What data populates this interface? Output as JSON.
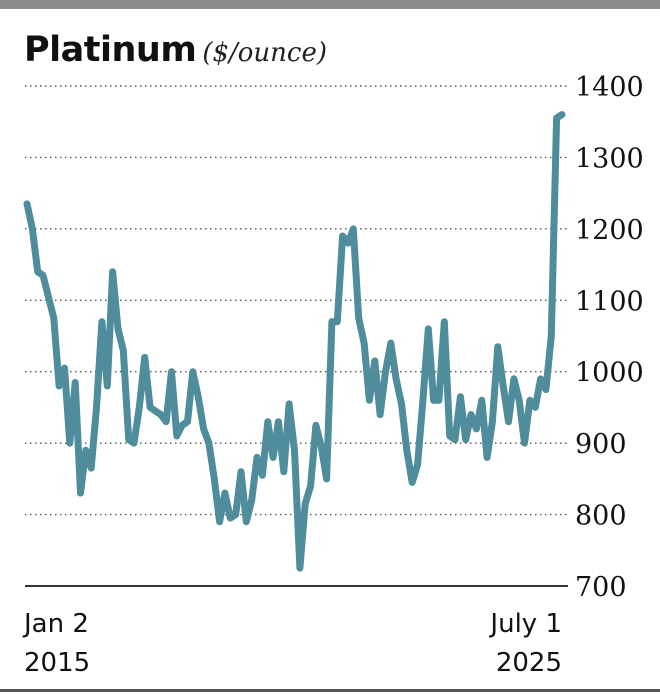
{
  "chart_data": {
    "type": "line",
    "title": "Platinum",
    "unit_label": "($/ounce)",
    "y_ticks": [
      1400,
      1300,
      1200,
      1100,
      1000,
      900,
      800,
      700
    ],
    "ylim": [
      700,
      1400
    ],
    "x_labels": [
      {
        "line1": "Jan 2",
        "line2": "2015"
      },
      {
        "line1": "July 1",
        "line2": "2025"
      }
    ],
    "grid": "horizontal dotted",
    "line_color": "#4f8d9c",
    "series": [
      {
        "values": [
          1235,
          1200,
          1140,
          1135,
          1105,
          1075,
          980,
          1005,
          900,
          985,
          830,
          890,
          865,
          950,
          1070,
          980,
          1140,
          1060,
          1030,
          905,
          900,
          950,
          1020,
          950,
          945,
          940,
          930,
          1000,
          910,
          925,
          930,
          1000,
          965,
          920,
          900,
          850,
          790,
          830,
          795,
          800,
          860,
          790,
          820,
          880,
          855,
          930,
          880,
          930,
          860,
          955,
          890,
          725,
          815,
          840,
          925,
          895,
          850,
          1070,
          1070,
          1190,
          1180,
          1200,
          1075,
          1040,
          960,
          1015,
          940,
          1000,
          1040,
          990,
          955,
          890,
          845,
          870,
          960,
          1060,
          960,
          960,
          1070,
          910,
          905,
          965,
          905,
          940,
          920,
          960,
          880,
          930,
          1035,
          980,
          930,
          990,
          960,
          900,
          960,
          950,
          990,
          975,
          1050,
          1355,
          1360
        ]
      }
    ]
  }
}
